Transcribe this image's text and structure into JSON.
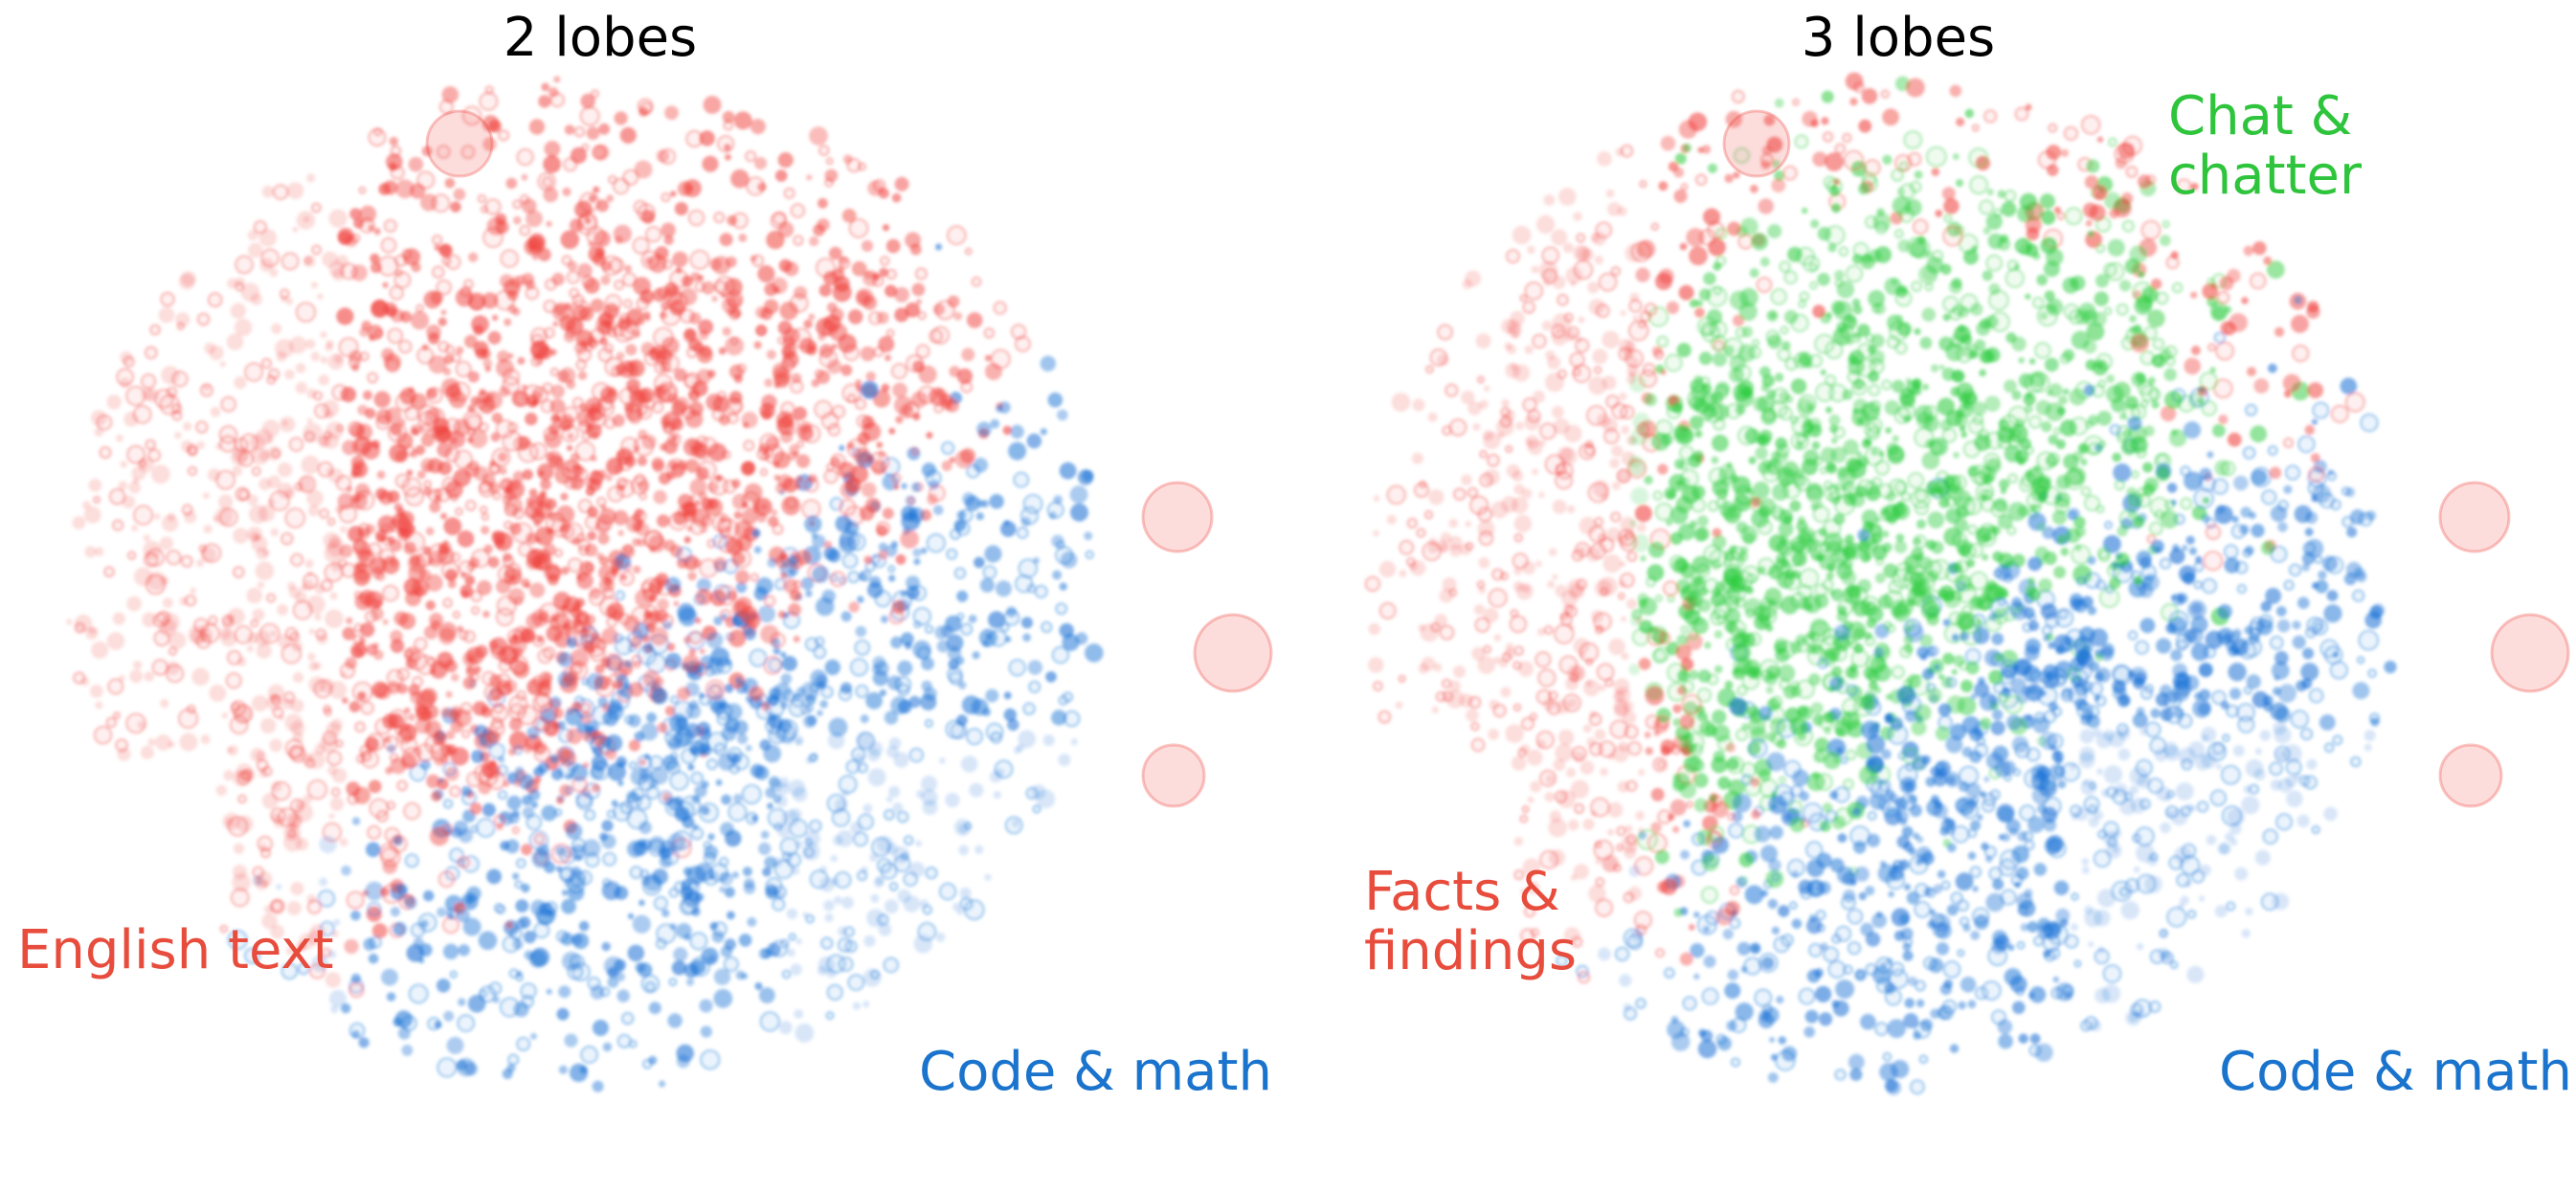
{
  "chart_data": [
    {
      "type": "scatter",
      "title": "2 lobes",
      "description_kind": "2D embedding scatter, points colored by lobe",
      "xlabel": "",
      "ylabel": "",
      "grid": false,
      "series": [
        {
          "name": "English text",
          "color": "#f0413c",
          "region": "left and upper-center"
        },
        {
          "name": "Code & math",
          "color": "#1b72d6",
          "region": "lower-right"
        }
      ],
      "annotations": [
        {
          "text": "English text",
          "color": "#e74c3c",
          "placement": "bottom-left"
        },
        {
          "text": "Code & math",
          "color": "#1a73cc",
          "placement": "bottom-right"
        }
      ]
    },
    {
      "type": "scatter",
      "title": "3 lobes",
      "description_kind": "2D embedding scatter, points colored by lobe",
      "xlabel": "",
      "ylabel": "",
      "grid": false,
      "series": [
        {
          "name": "Facts & findings",
          "color": "#f0413c",
          "region": "left and scattered"
        },
        {
          "name": "Chat & chatter",
          "color": "#2ecc40",
          "region": "upper-center"
        },
        {
          "name": "Code & math",
          "color": "#1b72d6",
          "region": "lower-right"
        }
      ],
      "annotations": [
        {
          "text": "Chat &\nchatter",
          "color": "#2ec43c",
          "placement": "top-right"
        },
        {
          "text": "Facts &\nfindings",
          "color": "#e74c3c",
          "placement": "bottom-left"
        },
        {
          "text": "Code & math",
          "color": "#1a73cc",
          "placement": "bottom-right"
        }
      ]
    }
  ]
}
